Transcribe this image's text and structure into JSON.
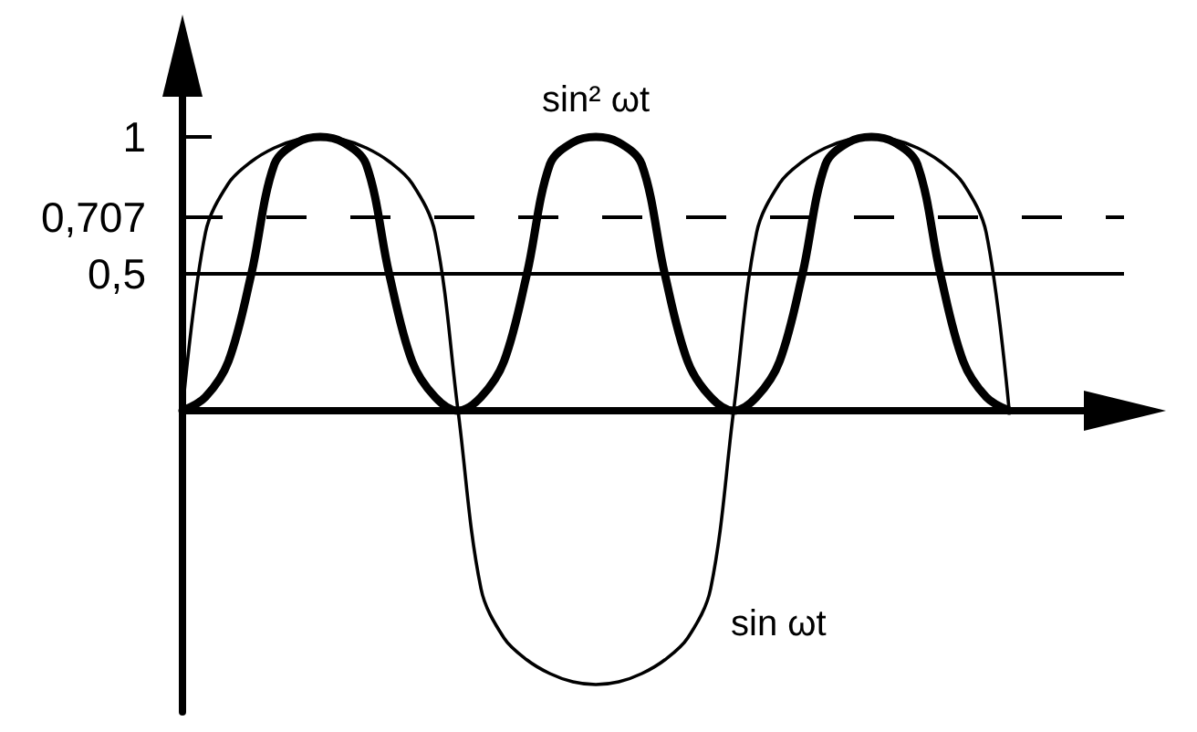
{
  "chart_data": {
    "type": "line",
    "categories": [
      null,
      null,
      null,
      null,
      null,
      null,
      null,
      null,
      null,
      null,
      null,
      null,
      null,
      null,
      null,
      null,
      null,
      null,
      null,
      null,
      null,
      null,
      null,
      null,
      null,
      null,
      null,
      null,
      null,
      null,
      null,
      null,
      null,
      null,
      null,
      null,
      null,
      null,
      null,
      null,
      null,
      null
    ],
    "series": [
      {
        "name": "sin ωt",
        "color": "#000000",
        "values": [
          0,
          0.65,
          0.83,
          0.91,
          0.96,
          0.99,
          1,
          0.99,
          0.96,
          0.91,
          0.83,
          0.65,
          0,
          -0.65,
          -0.83,
          -0.91,
          -0.96,
          -0.99,
          -1,
          -0.99,
          -0.96,
          -0.91,
          -0.83,
          -0.65,
          0,
          0.65,
          0.83,
          0.91,
          0.96,
          0.99,
          1,
          0.99,
          0.96,
          0.91,
          0.83,
          0.65,
          0,
          null,
          null,
          null,
          null,
          null
        ]
      },
      {
        "name": "sin² ωt",
        "color": "#000000",
        "values": [
          0,
          0.05,
          0.18,
          0.5,
          0.9,
          0.98,
          1,
          0.98,
          0.9,
          0.5,
          0.18,
          0.05,
          0,
          0.05,
          0.18,
          0.5,
          0.9,
          0.98,
          1,
          0.98,
          0.9,
          0.5,
          0.18,
          0.05,
          0,
          0.05,
          0.18,
          0.5,
          0.9,
          0.98,
          1,
          0.98,
          0.9,
          0.5,
          0.18,
          0.05,
          0,
          null,
          null,
          null,
          null,
          null
        ]
      }
    ],
    "ylim": [
      -1.1,
      1.3
    ],
    "yticks": [
      {
        "value": 0.5,
        "label": "0,5"
      },
      {
        "value": 0.707,
        "label": "0,707"
      },
      {
        "value": 1,
        "label": "1"
      }
    ],
    "ref_lines": [
      {
        "axis": "y",
        "value": 0.707,
        "line_style": "dashed",
        "color": "#000000"
      },
      {
        "axis": "y",
        "value": 0.5,
        "line_style": "solid",
        "color": "#000000"
      }
    ],
    "tick_labels": "y",
    "marker": "none",
    "line_style": "solid"
  }
}
